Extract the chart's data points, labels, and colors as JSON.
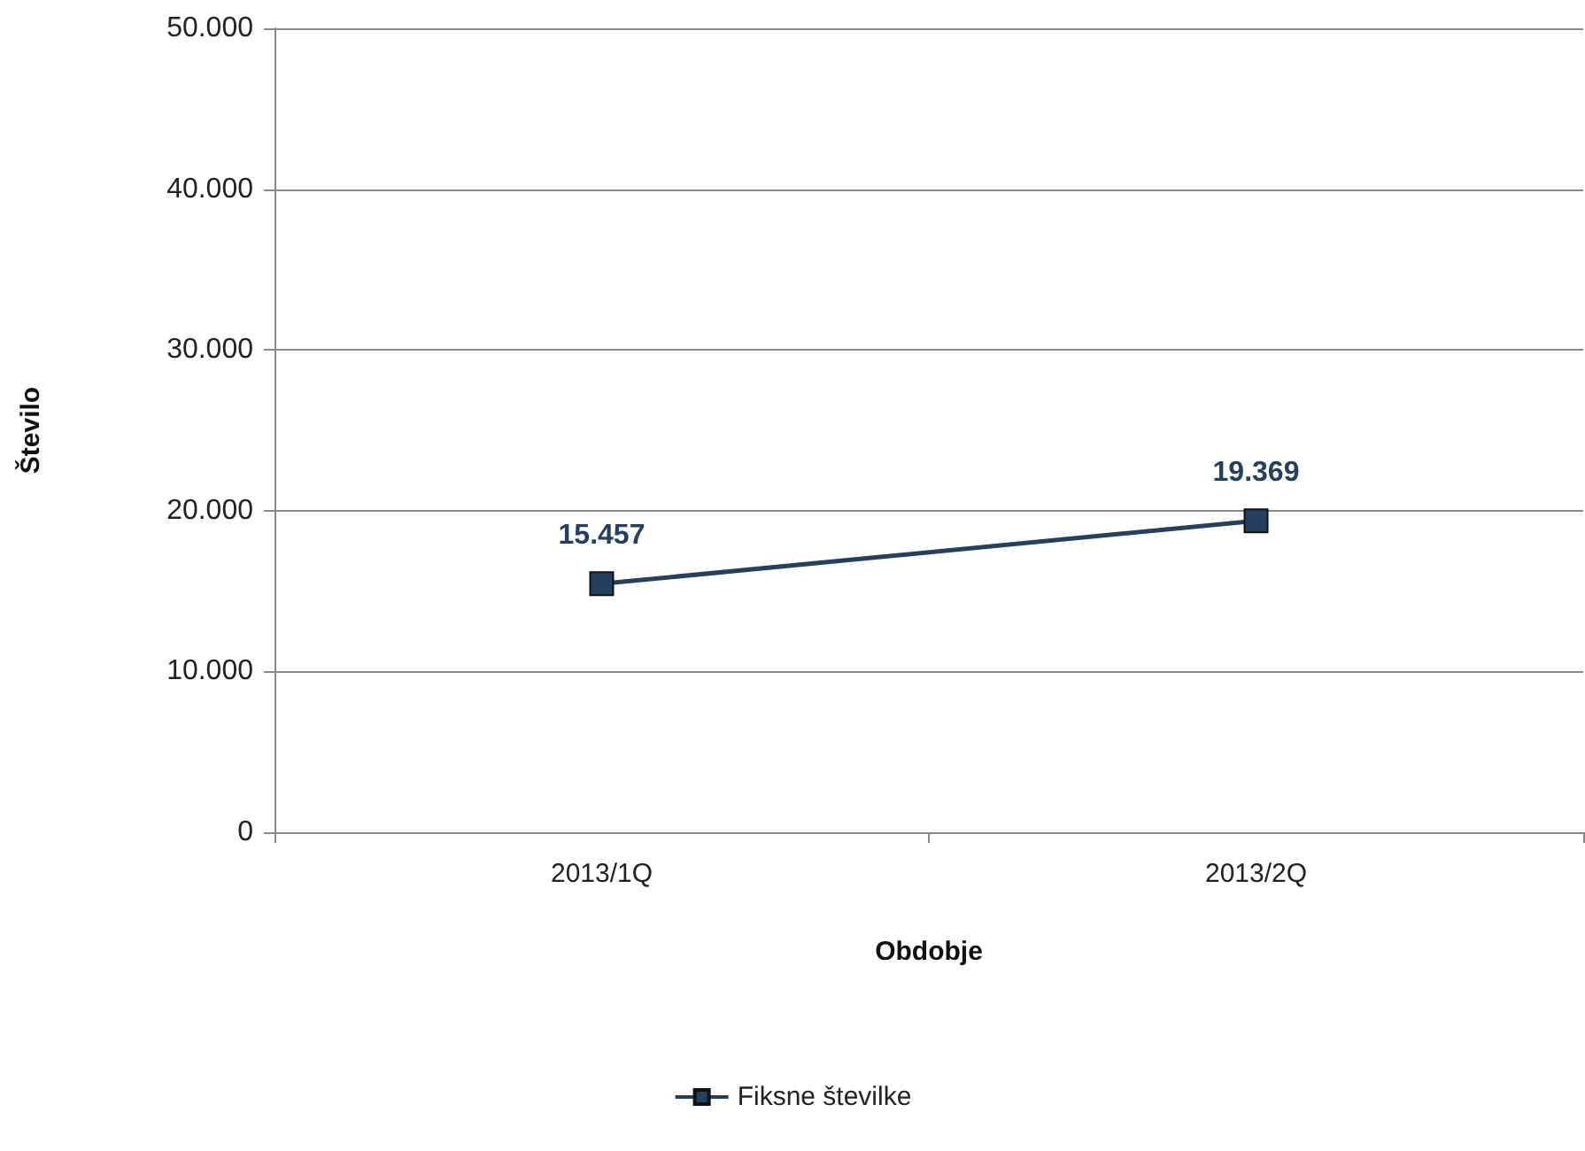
{
  "chart_data": {
    "type": "line",
    "xlabel": "Obdobje",
    "ylabel": "Število",
    "categories": [
      "2013/1Q",
      "2013/2Q"
    ],
    "series": [
      {
        "name": "Fiksne številke",
        "color": "#243f60",
        "values": [
          15457,
          19369
        ],
        "value_labels": [
          "15.457",
          "19.369"
        ]
      }
    ],
    "ylim": [
      0,
      50000
    ],
    "yticks": [
      {
        "value": 0,
        "label": "0"
      },
      {
        "value": 10000,
        "label": "10.000"
      },
      {
        "value": 20000,
        "label": "20.000"
      },
      {
        "value": 30000,
        "label": "30.000"
      },
      {
        "value": 40000,
        "label": "40.000"
      },
      {
        "value": 50000,
        "label": "50.000"
      }
    ],
    "grid": "y",
    "legend": "bottom",
    "marker": "square",
    "line_style": "solid"
  }
}
